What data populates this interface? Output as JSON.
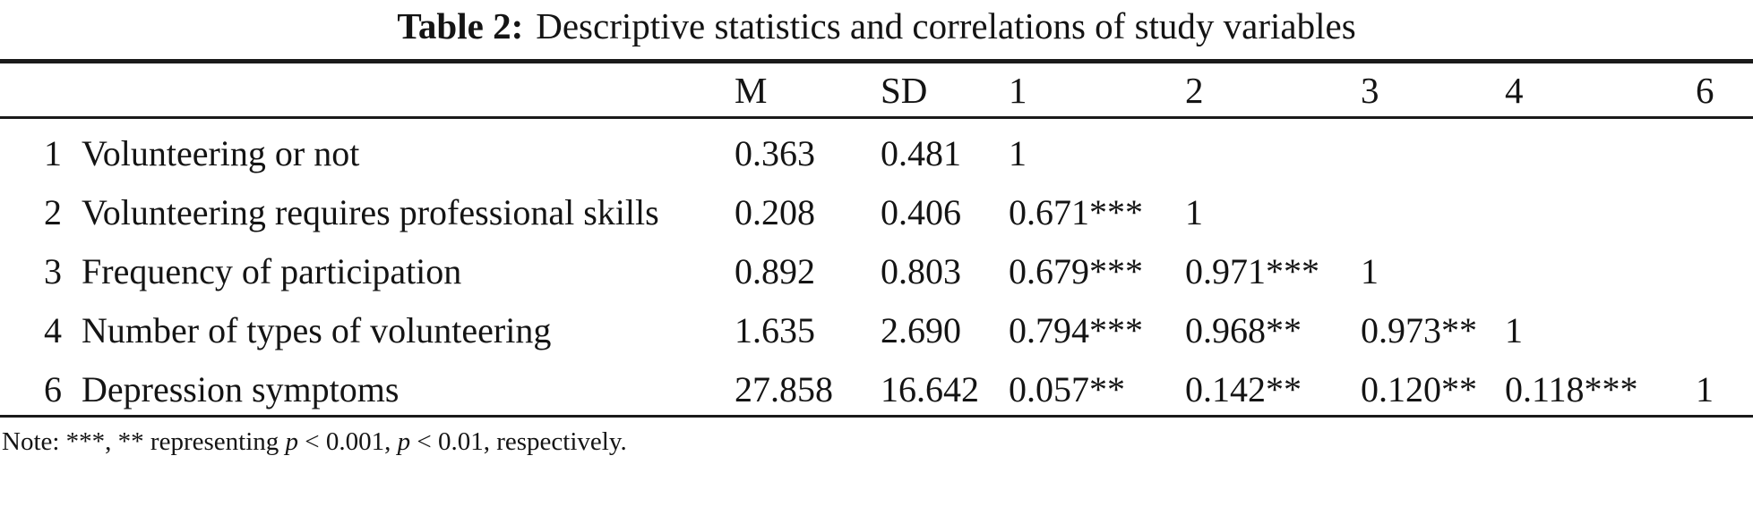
{
  "title": {
    "label": "Table 2:",
    "text": "Descriptive statistics and correlations of study variables"
  },
  "table": {
    "columns": {
      "m": "M",
      "sd": "SD",
      "c1": "1",
      "c2": "2",
      "c3": "3",
      "c4": "4",
      "c6": "6"
    },
    "rows": [
      {
        "num": "1",
        "label": "Volunteering or not",
        "m": "0.363",
        "sd": "0.481",
        "c1": "1",
        "c2": "",
        "c3": "",
        "c4": "",
        "c6": ""
      },
      {
        "num": "2",
        "label": "Volunteering requires professional skills",
        "m": "0.208",
        "sd": "0.406",
        "c1": "0.671***",
        "c2": "1",
        "c3": "",
        "c4": "",
        "c6": ""
      },
      {
        "num": "3",
        "label": "Frequency of participation",
        "m": "0.892",
        "sd": "0.803",
        "c1": "0.679***",
        "c2": "0.971***",
        "c3": "1",
        "c4": "",
        "c6": ""
      },
      {
        "num": "4",
        "label": "Number of types of volunteering",
        "m": "1.635",
        "sd": "2.690",
        "c1": "0.794***",
        "c2": "0.968**",
        "c3": "0.973**",
        "c4": "1",
        "c6": ""
      },
      {
        "num": "6",
        "label": "Depression symptoms",
        "m": "27.858",
        "sd": "16.642",
        "c1": "0.057**",
        "c2": "0.142**",
        "c3": "0.120**",
        "c4": "0.118***",
        "c6": "1"
      }
    ]
  },
  "note": {
    "prefix": "Note: ***, ** representing ",
    "p1": "p",
    "seg1": " < 0.001, ",
    "p2": "p",
    "seg2": " < 0.01, respectively."
  },
  "colors": {
    "text": "#141414",
    "rule": "#1a1a1a",
    "background": "#ffffff"
  }
}
